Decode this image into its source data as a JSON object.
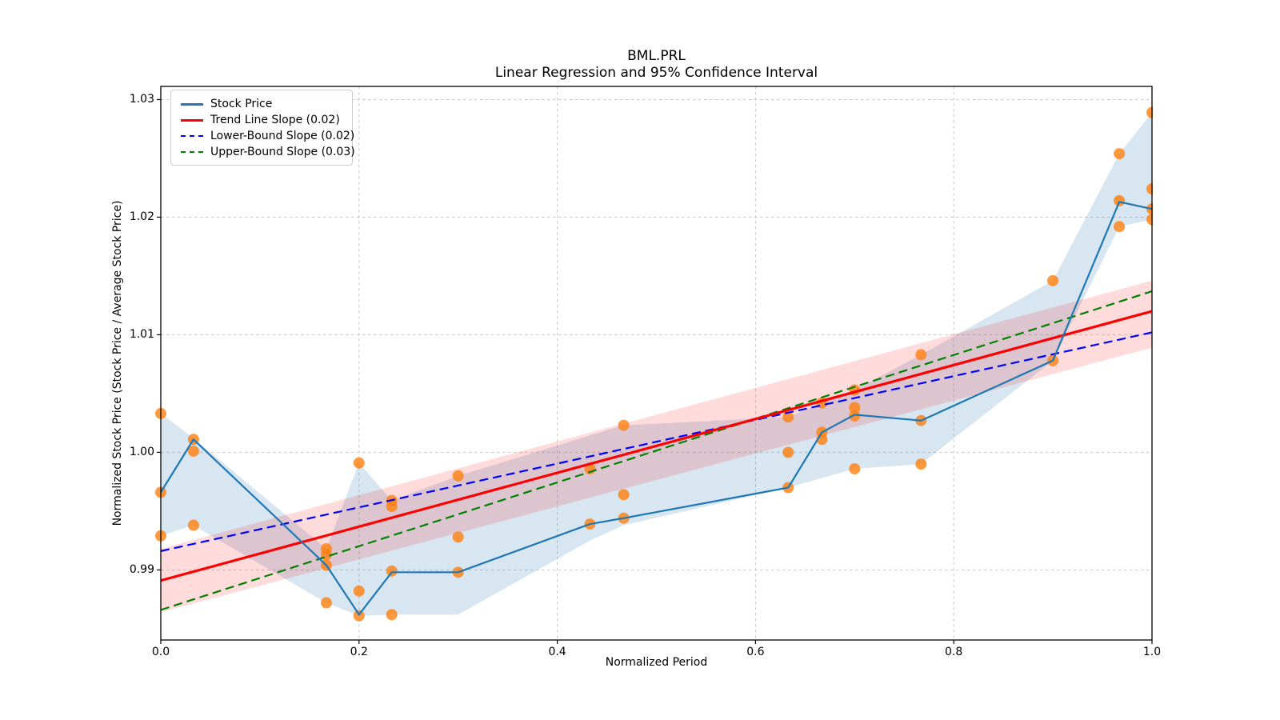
{
  "figure": {
    "title": "BML.PRL",
    "subtitle": "Linear Regression and 95% Confidence Interval",
    "xlabel": "Normalized Period",
    "ylabel": "Normalized Stock Price (Stock Price / Average Stock Price)"
  },
  "legend": {
    "items": [
      {
        "label": "Stock Price",
        "color": "#1f77b4",
        "dash": "solid"
      },
      {
        "label": "Trend Line Slope (0.02)",
        "color": "#ff0000",
        "dash": "solid"
      },
      {
        "label": "Lower-Bound Slope (0.02)",
        "color": "#0000ff",
        "dash": "dashed"
      },
      {
        "label": "Upper-Bound Slope (0.03)",
        "color": "#008000",
        "dash": "dashed"
      }
    ]
  },
  "colors": {
    "stock_line": "#1f77b4",
    "scatter": "rgba(255,127,14,0.8)",
    "stock_band": "rgba(31,119,180,0.18)",
    "trend_line": "#ff0000",
    "trend_band": "rgba(255,0,0,0.14)",
    "lower_bound": "#0000ff",
    "upper_bound": "#008000",
    "grid": "#c7c7c7",
    "spine": "#000000"
  },
  "chart_data": {
    "type": "line",
    "title": "BML.PRL",
    "subtitle": "Linear Regression and 95% Confidence Interval",
    "xlabel": "Normalized Period",
    "ylabel": "Normalized Stock Price (Stock Price / Average Stock Price)",
    "xlim": [
      0,
      1
    ],
    "ylim": [
      0.98404,
      1.03112
    ],
    "grid": true,
    "legend_position": "upper left",
    "xticks": {
      "values": [
        0.0,
        0.2,
        0.4,
        0.6,
        0.8,
        1.0
      ],
      "labels": [
        "0.0",
        "0.2",
        "0.4",
        "0.6",
        "0.8",
        "1.0"
      ]
    },
    "yticks": {
      "values": [
        0.99,
        1.0,
        1.01,
        1.02,
        1.03
      ],
      "labels": [
        "0.99",
        "1.00",
        "1.01",
        "1.02",
        "1.03"
      ]
    },
    "series": [
      {
        "name": "Stock Price",
        "type": "line",
        "dash": false,
        "z": 5,
        "width": 2.2,
        "x": [
          0,
          0.033,
          0.167,
          0.2,
          0.233,
          0.3,
          0.433,
          0.467,
          0.633,
          0.667,
          0.7,
          0.767,
          0.9,
          0.967,
          1.0
        ],
        "y": [
          0.9966,
          1.0011,
          0.9904,
          0.9862,
          0.9898,
          0.9898,
          0.9939,
          0.9944,
          0.997,
          1.0017,
          1.0032,
          1.0027,
          1.0078,
          1.0213,
          1.0207
        ]
      },
      {
        "name": "Trend Line Slope (0.02)",
        "type": "line",
        "dash": false,
        "z": 4,
        "width": 3.2,
        "x": [
          0,
          1
        ],
        "y": [
          0.9891,
          1.012
        ],
        "slope": 0.02
      },
      {
        "name": "Lower-Bound Slope (0.02)",
        "type": "line",
        "dash": true,
        "z": 3,
        "width": 2.2,
        "x": [
          0,
          1
        ],
        "y": [
          0.9916,
          1.0102
        ],
        "slope": 0.02
      },
      {
        "name": "Upper-Bound Slope (0.03)",
        "type": "line",
        "dash": true,
        "z": 3,
        "width": 2.2,
        "x": [
          0,
          1
        ],
        "y": [
          0.9866,
          1.0137
        ],
        "slope": 0.03
      }
    ],
    "scatter": {
      "name": "daily-price-observations",
      "marker_radius": 7,
      "points": [
        [
          0,
          1.0033
        ],
        [
          0,
          0.9966
        ],
        [
          0,
          0.9929
        ],
        [
          0.033,
          1.0011
        ],
        [
          0.033,
          1.0001
        ],
        [
          0.033,
          0.9938
        ],
        [
          0.167,
          0.9918
        ],
        [
          0.167,
          0.9913
        ],
        [
          0.167,
          0.9904
        ],
        [
          0.167,
          0.9872
        ],
        [
          0.2,
          0.9991
        ],
        [
          0.2,
          0.9882
        ],
        [
          0.2,
          0.9861
        ],
        [
          0.233,
          0.9959
        ],
        [
          0.233,
          0.9954
        ],
        [
          0.233,
          0.9899
        ],
        [
          0.233,
          0.9862
        ],
        [
          0.3,
          0.998
        ],
        [
          0.3,
          0.9928
        ],
        [
          0.3,
          0.9898
        ],
        [
          0.433,
          0.9986
        ],
        [
          0.433,
          0.9939
        ],
        [
          0.467,
          1.0023
        ],
        [
          0.467,
          0.9964
        ],
        [
          0.467,
          0.9944
        ],
        [
          0.633,
          1.003
        ],
        [
          0.633,
          1.0
        ],
        [
          0.633,
          0.997
        ],
        [
          0.667,
          1.0042
        ],
        [
          0.667,
          1.0017
        ],
        [
          0.667,
          1.0011
        ],
        [
          0.7,
          1.0053
        ],
        [
          0.7,
          1.0038
        ],
        [
          0.7,
          1.0031
        ],
        [
          0.7,
          0.9986
        ],
        [
          0.767,
          1.0083
        ],
        [
          0.767,
          1.0027
        ],
        [
          0.767,
          0.999
        ],
        [
          0.9,
          1.0146
        ],
        [
          0.9,
          1.0078
        ],
        [
          0.967,
          1.0254
        ],
        [
          0.967,
          1.0214
        ],
        [
          0.967,
          1.0192
        ],
        [
          1.0,
          1.0289
        ],
        [
          1.0,
          1.0224
        ],
        [
          1.0,
          1.0207
        ],
        [
          1.0,
          1.0198
        ]
      ]
    },
    "bands": [
      {
        "name": "stock-price-range-band",
        "colorKey": "stock_band",
        "upper": [
          [
            0,
            1.0033
          ],
          [
            0.033,
            1.0012
          ],
          [
            0.167,
            0.9918
          ],
          [
            0.2,
            0.9991
          ],
          [
            0.233,
            0.9959
          ],
          [
            0.3,
            0.998
          ],
          [
            0.467,
            1.0023
          ],
          [
            0.633,
            1.003
          ],
          [
            0.667,
            1.0042
          ],
          [
            0.7,
            1.0053
          ],
          [
            0.767,
            1.0083
          ],
          [
            0.9,
            1.0146
          ],
          [
            0.967,
            1.0254
          ],
          [
            1.0,
            1.0289
          ]
        ],
        "lower": [
          [
            0,
            0.9929
          ],
          [
            0.033,
            0.9938
          ],
          [
            0.167,
            0.9872
          ],
          [
            0.2,
            0.9861
          ],
          [
            0.233,
            0.9862
          ],
          [
            0.3,
            0.9862
          ],
          [
            0.433,
            0.9925
          ],
          [
            0.467,
            0.9938
          ],
          [
            0.633,
            0.997
          ],
          [
            0.7,
            0.9986
          ],
          [
            0.767,
            0.999
          ],
          [
            0.9,
            1.0078
          ],
          [
            0.967,
            1.0192
          ],
          [
            1.0,
            1.0198
          ]
        ]
      },
      {
        "name": "trend-95pct-confidence-band",
        "colorKey": "trend_band",
        "upper": [
          [
            0,
            0.9918
          ],
          [
            1,
            1.0146
          ]
        ],
        "lower": [
          [
            0,
            0.9864
          ],
          [
            1,
            1.0089
          ]
        ]
      }
    ]
  }
}
